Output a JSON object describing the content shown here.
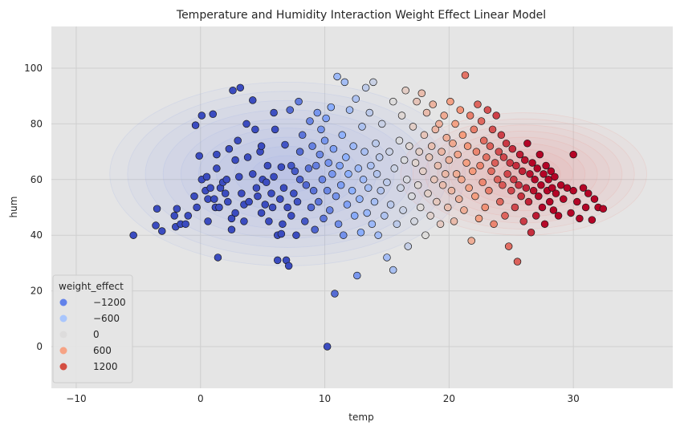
{
  "chart_data": {
    "type": "scatter",
    "title": "Temperature and Humidity Interaction Weight Effect Linear Model",
    "xlabel": "temp",
    "ylabel": "hum",
    "xlim": [
      -12,
      38
    ],
    "ylim": [
      -15,
      115
    ],
    "xticks": [
      "−10",
      "0",
      "10",
      "20",
      "30"
    ],
    "xtick_values": [
      -10,
      0,
      10,
      20,
      30
    ],
    "yticks": [
      "0",
      "20",
      "40",
      "60",
      "80",
      "100"
    ],
    "ytick_values": [
      0,
      20,
      40,
      60,
      80,
      100
    ],
    "grid": true,
    "background": "#e5e5e5",
    "colormap": "coolwarm",
    "color_range": [
      -1500,
      1500
    ],
    "legend": {
      "title": "weight_effect",
      "placement": "lower-left",
      "entries": [
        {
          "label": "−1200",
          "value": -1200,
          "color": "#6282ea"
        },
        {
          "label": "−600",
          "value": -600,
          "color": "#a9c6fd"
        },
        {
          "label": "0",
          "value": 0,
          "color": "#dddcdc"
        },
        {
          "label": "600",
          "value": 600,
          "color": "#f6a385"
        },
        {
          "label": "1200",
          "value": 1200,
          "color": "#d44e41"
        }
      ]
    },
    "density_contours": [
      {
        "name": "negative-effect",
        "color": "#8ea4e8",
        "center_temp": 7,
        "center_hum": 62,
        "spread_temp": 6.5,
        "spread_hum": 15
      },
      {
        "name": "positive-effect",
        "color": "#ef8e86",
        "center_temp": 26,
        "center_hum": 62,
        "spread_temp": 4.5,
        "spread_hum": 10
      }
    ],
    "points": [
      [
        -5.4,
        40
      ],
      [
        -3.6,
        43.5
      ],
      [
        -3.5,
        49.5
      ],
      [
        -3.1,
        41.5
      ],
      [
        -2.1,
        47
      ],
      [
        -2,
        43
      ],
      [
        -1.9,
        49.5
      ],
      [
        -1.6,
        44
      ],
      [
        -1.2,
        44
      ],
      [
        -1,
        47
      ],
      [
        -0.5,
        54
      ],
      [
        -0.3,
        50
      ],
      [
        -0.4,
        79.5
      ],
      [
        -0.1,
        68.5
      ],
      [
        0.1,
        60
      ],
      [
        0.1,
        83
      ],
      [
        0.4,
        56
      ],
      [
        0.5,
        61
      ],
      [
        0.6,
        53
      ],
      [
        0.6,
        45
      ],
      [
        0.8,
        57
      ],
      [
        1,
        83.5
      ],
      [
        1.1,
        53
      ],
      [
        1.2,
        50
      ],
      [
        1.3,
        69
      ],
      [
        1.3,
        64
      ],
      [
        1.5,
        50
      ],
      [
        1.6,
        57
      ],
      [
        1.4,
        32
      ],
      [
        1.8,
        59
      ],
      [
        2,
        55
      ],
      [
        2.1,
        60
      ],
      [
        2.2,
        52
      ],
      [
        2.3,
        71
      ],
      [
        2.5,
        46
      ],
      [
        2.5,
        42
      ],
      [
        2.6,
        92
      ],
      [
        2.8,
        67
      ],
      [
        2.8,
        48
      ],
      [
        3,
        74
      ],
      [
        3.1,
        61
      ],
      [
        3.2,
        93
      ],
      [
        3.3,
        55
      ],
      [
        3.5,
        51
      ],
      [
        3.5,
        45
      ],
      [
        3.7,
        80
      ],
      [
        3.8,
        68
      ],
      [
        3.9,
        52
      ],
      [
        4.2,
        88.5
      ],
      [
        4.2,
        62
      ],
      [
        4.4,
        78
      ],
      [
        4.5,
        57
      ],
      [
        4.6,
        54
      ],
      [
        4.8,
        70
      ],
      [
        4.9,
        48
      ],
      [
        4.9,
        72
      ],
      [
        5,
        60
      ],
      [
        5.2,
        51
      ],
      [
        5.3,
        59
      ],
      [
        5.4,
        65
      ],
      [
        5.5,
        45
      ],
      [
        5.7,
        55
      ],
      [
        5.8,
        50
      ],
      [
        5.9,
        84
      ],
      [
        5.9,
        61
      ],
      [
        6,
        78
      ],
      [
        6.2,
        40
      ],
      [
        6.2,
        31
      ],
      [
        6.4,
        53
      ],
      [
        6.5,
        64.5
      ],
      [
        6.5,
        40.5
      ],
      [
        6.6,
        44
      ],
      [
        6.7,
        57
      ],
      [
        6.8,
        72.5
      ],
      [
        6.9,
        31
      ],
      [
        7,
        50
      ],
      [
        7.1,
        29
      ],
      [
        7.2,
        85
      ],
      [
        7.3,
        65
      ],
      [
        7.3,
        47
      ],
      [
        7.5,
        55
      ],
      [
        7.6,
        63
      ],
      [
        7.7,
        40
      ],
      [
        7.8,
        52
      ],
      [
        7.9,
        88
      ],
      [
        8,
        70
      ],
      [
        8,
        60
      ],
      [
        8.2,
        76
      ],
      [
        8.4,
        45
      ],
      [
        8.5,
        58
      ],
      [
        8.7,
        64
      ],
      [
        8.8,
        81
      ],
      [
        8.9,
        50
      ],
      [
        9,
        72
      ],
      [
        9.1,
        56
      ],
      [
        9.2,
        42
      ],
      [
        9.3,
        65
      ],
      [
        9.4,
        84
      ],
      [
        9.5,
        52
      ],
      [
        9.6,
        69
      ],
      [
        9.7,
        78
      ],
      [
        9.8,
        60
      ],
      [
        9.9,
        46
      ],
      [
        10,
        74
      ],
      [
        10.1,
        82
      ],
      [
        10.2,
        56
      ],
      [
        10.3,
        66
      ],
      [
        10.4,
        49
      ],
      [
        10.5,
        86
      ],
      [
        10.6,
        62
      ],
      [
        10.7,
        71
      ],
      [
        10.8,
        19
      ],
      [
        10.9,
        54
      ],
      [
        11,
        97
      ],
      [
        11.1,
        44
      ],
      [
        11.2,
        65
      ],
      [
        11.3,
        58
      ],
      [
        11.4,
        76
      ],
      [
        11.5,
        40
      ],
      [
        11.6,
        95
      ],
      [
        11.7,
        68
      ],
      [
        11.8,
        51
      ],
      [
        11.9,
        62
      ],
      [
        12,
        85
      ],
      [
        12.2,
        56
      ],
      [
        12.3,
        72
      ],
      [
        12.4,
        47
      ],
      [
        12.5,
        89
      ],
      [
        12.6,
        25.5
      ],
      [
        12.7,
        64
      ],
      [
        12.8,
        53
      ],
      [
        12.9,
        41
      ],
      [
        13,
        79
      ],
      [
        13.1,
        60
      ],
      [
        13.2,
        70
      ],
      [
        13.3,
        93
      ],
      [
        13.4,
        48
      ],
      [
        13.5,
        57
      ],
      [
        13.6,
        84
      ],
      [
        13.7,
        65
      ],
      [
        13.8,
        44
      ],
      [
        13.9,
        95
      ],
      [
        14,
        52
      ],
      [
        14.1,
        73
      ],
      [
        14.2,
        62
      ],
      [
        14.3,
        40
      ],
      [
        14.4,
        68
      ],
      [
        14.5,
        56
      ],
      [
        14.6,
        80
      ],
      [
        14.8,
        47
      ],
      [
        15,
        32
      ],
      [
        15,
        59
      ],
      [
        15.2,
        70
      ],
      [
        15.3,
        51
      ],
      [
        15.5,
        88
      ],
      [
        15.5,
        27.5
      ],
      [
        15.6,
        64
      ],
      [
        15.8,
        44
      ],
      [
        16,
        74
      ],
      [
        16.1,
        57
      ],
      [
        16.2,
        83
      ],
      [
        16.3,
        49
      ],
      [
        16.4,
        67
      ],
      [
        16.5,
        92
      ],
      [
        16.6,
        60
      ],
      [
        16.7,
        36
      ],
      [
        16.8,
        72
      ],
      [
        17,
        54
      ],
      [
        17.1,
        79
      ],
      [
        17.2,
        45
      ],
      [
        17.3,
        66
      ],
      [
        17.4,
        88
      ],
      [
        17.5,
        58
      ],
      [
        17.6,
        70
      ],
      [
        17.7,
        50
      ],
      [
        17.8,
        91
      ],
      [
        17.9,
        63
      ],
      [
        18,
        76
      ],
      [
        18.1,
        40
      ],
      [
        18.2,
        84
      ],
      [
        18.3,
        55
      ],
      [
        18.4,
        68
      ],
      [
        18.5,
        47
      ],
      [
        18.6,
        72
      ],
      [
        18.7,
        87
      ],
      [
        18.8,
        60
      ],
      [
        18.9,
        78
      ],
      [
        19,
        52
      ],
      [
        19.1,
        65
      ],
      [
        19.2,
        80
      ],
      [
        19.3,
        44
      ],
      [
        19.4,
        70
      ],
      [
        19.5,
        58
      ],
      [
        19.6,
        83
      ],
      [
        19.7,
        62
      ],
      [
        19.8,
        75
      ],
      [
        19.9,
        50
      ],
      [
        20,
        67
      ],
      [
        20.1,
        88
      ],
      [
        20.2,
        56
      ],
      [
        20.3,
        73
      ],
      [
        20.4,
        45
      ],
      [
        20.5,
        80
      ],
      [
        20.6,
        62
      ],
      [
        20.7,
        69
      ],
      [
        20.8,
        53
      ],
      [
        20.9,
        85
      ],
      [
        21,
        60
      ],
      [
        21.1,
        76
      ],
      [
        21.2,
        49
      ],
      [
        21.3,
        97.5
      ],
      [
        21.4,
        66
      ],
      [
        21.5,
        72
      ],
      [
        21.6,
        57
      ],
      [
        21.7,
        83
      ],
      [
        21.8,
        38
      ],
      [
        21.9,
        63
      ],
      [
        22,
        78
      ],
      [
        22.1,
        54
      ],
      [
        22.2,
        70
      ],
      [
        22.3,
        87
      ],
      [
        22.4,
        46
      ],
      [
        22.5,
        65
      ],
      [
        22.6,
        81
      ],
      [
        22.7,
        59
      ],
      [
        22.8,
        74
      ],
      [
        22.9,
        50
      ],
      [
        23,
        68
      ],
      [
        23.1,
        85
      ],
      [
        23.2,
        56
      ],
      [
        23.3,
        72
      ],
      [
        23.4,
        63
      ],
      [
        23.5,
        78
      ],
      [
        23.6,
        44
      ],
      [
        23.7,
        66
      ],
      [
        23.8,
        83
      ],
      [
        23.9,
        60
      ],
      [
        24,
        70
      ],
      [
        24.1,
        52
      ],
      [
        24.2,
        76
      ],
      [
        24.3,
        58
      ],
      [
        24.4,
        68
      ],
      [
        24.5,
        47
      ],
      [
        24.6,
        73
      ],
      [
        24.7,
        62
      ],
      [
        24.8,
        36
      ],
      [
        24.9,
        66
      ],
      [
        25,
        56
      ],
      [
        25.1,
        71
      ],
      [
        25.2,
        60
      ],
      [
        25.3,
        50
      ],
      [
        25.4,
        65
      ],
      [
        25.5,
        30.5
      ],
      [
        25.6,
        58
      ],
      [
        25.7,
        69
      ],
      [
        25.8,
        54
      ],
      [
        25.9,
        63
      ],
      [
        26,
        45
      ],
      [
        26.1,
        67
      ],
      [
        26.2,
        57
      ],
      [
        26.3,
        73
      ],
      [
        26.4,
        52
      ],
      [
        26.5,
        62
      ],
      [
        26.6,
        41
      ],
      [
        26.7,
        66
      ],
      [
        26.8,
        56
      ],
      [
        26.9,
        60
      ],
      [
        27,
        47
      ],
      [
        27.1,
        64
      ],
      [
        27.2,
        54
      ],
      [
        27.3,
        69
      ],
      [
        27.4,
        58
      ],
      [
        27.5,
        50
      ],
      [
        27.6,
        62
      ],
      [
        27.7,
        44
      ],
      [
        27.8,
        65
      ],
      [
        27.9,
        56
      ],
      [
        28,
        60
      ],
      [
        28.1,
        52
      ],
      [
        28.2,
        63
      ],
      [
        28.3,
        57
      ],
      [
        28.4,
        49
      ],
      [
        28.5,
        61
      ],
      [
        28.6,
        55
      ],
      [
        28.8,
        47
      ],
      [
        29,
        58
      ],
      [
        29.2,
        53
      ],
      [
        29.5,
        57
      ],
      [
        29.8,
        48
      ],
      [
        30,
        56
      ],
      [
        30,
        69
      ],
      [
        30.3,
        52
      ],
      [
        30.5,
        46
      ],
      [
        30.8,
        57
      ],
      [
        31,
        50
      ],
      [
        31.2,
        55
      ],
      [
        31.5,
        45.5
      ],
      [
        31.7,
        53
      ],
      [
        32,
        50
      ],
      [
        32.4,
        49.5
      ],
      [
        10.2,
        0
      ]
    ]
  }
}
